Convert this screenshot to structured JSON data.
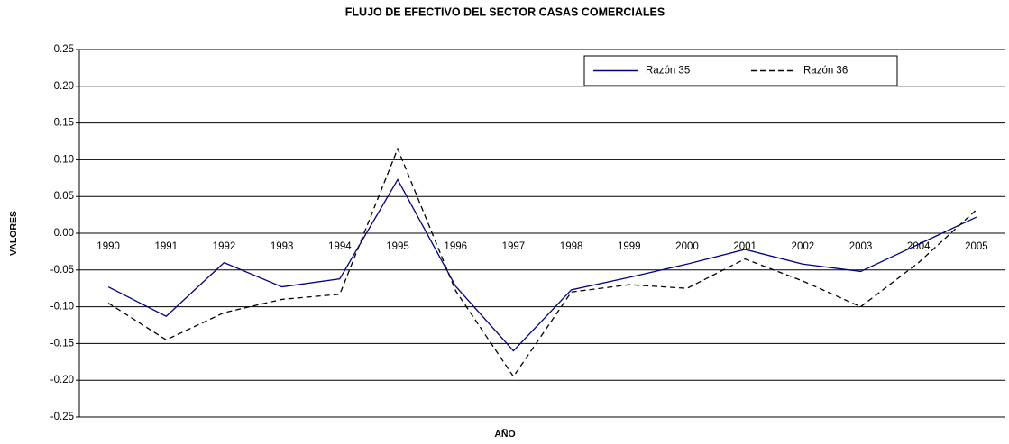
{
  "chart_data": {
    "type": "line",
    "title": "FLUJO DE EFECTIVO DEL SECTOR CASAS COMERCIALES",
    "xlabel": "AÑO",
    "ylabel": "VALORES",
    "categories": [
      "1990",
      "1991",
      "1992",
      "1993",
      "1994",
      "1995",
      "1996",
      "1997",
      "1998",
      "1999",
      "2000",
      "2001",
      "2002",
      "2003",
      "2004",
      "2005"
    ],
    "series": [
      {
        "name": "Razón 35",
        "color": "#000080",
        "dash": false,
        "values": [
          -0.073,
          -0.113,
          -0.04,
          -0.073,
          -0.062,
          0.073,
          -0.072,
          -0.16,
          -0.077,
          -0.06,
          -0.042,
          -0.022,
          -0.042,
          -0.052,
          -0.015,
          0.022
        ]
      },
      {
        "name": "Razón 36",
        "color": "#000000",
        "dash": true,
        "values": [
          -0.095,
          -0.145,
          -0.108,
          -0.09,
          -0.083,
          0.115,
          -0.078,
          -0.195,
          -0.08,
          -0.07,
          -0.075,
          -0.035,
          -0.065,
          -0.1,
          -0.04,
          0.032
        ]
      }
    ],
    "ylim": [
      -0.25,
      0.25
    ],
    "yticks": [
      0.25,
      {
        "value": 0.2,
        "label": "0.20"
      },
      0.15,
      {
        "value": 0.1,
        "label": "0.10"
      },
      0.05,
      {
        "value": 0,
        "label": "0.00"
      },
      -0.05,
      {
        "value": -0.1,
        "label": "-0.10"
      },
      -0.15,
      {
        "value": -0.2,
        "label": "-0.20"
      },
      -0.25
    ],
    "grid": true,
    "legend": "top-right"
  }
}
